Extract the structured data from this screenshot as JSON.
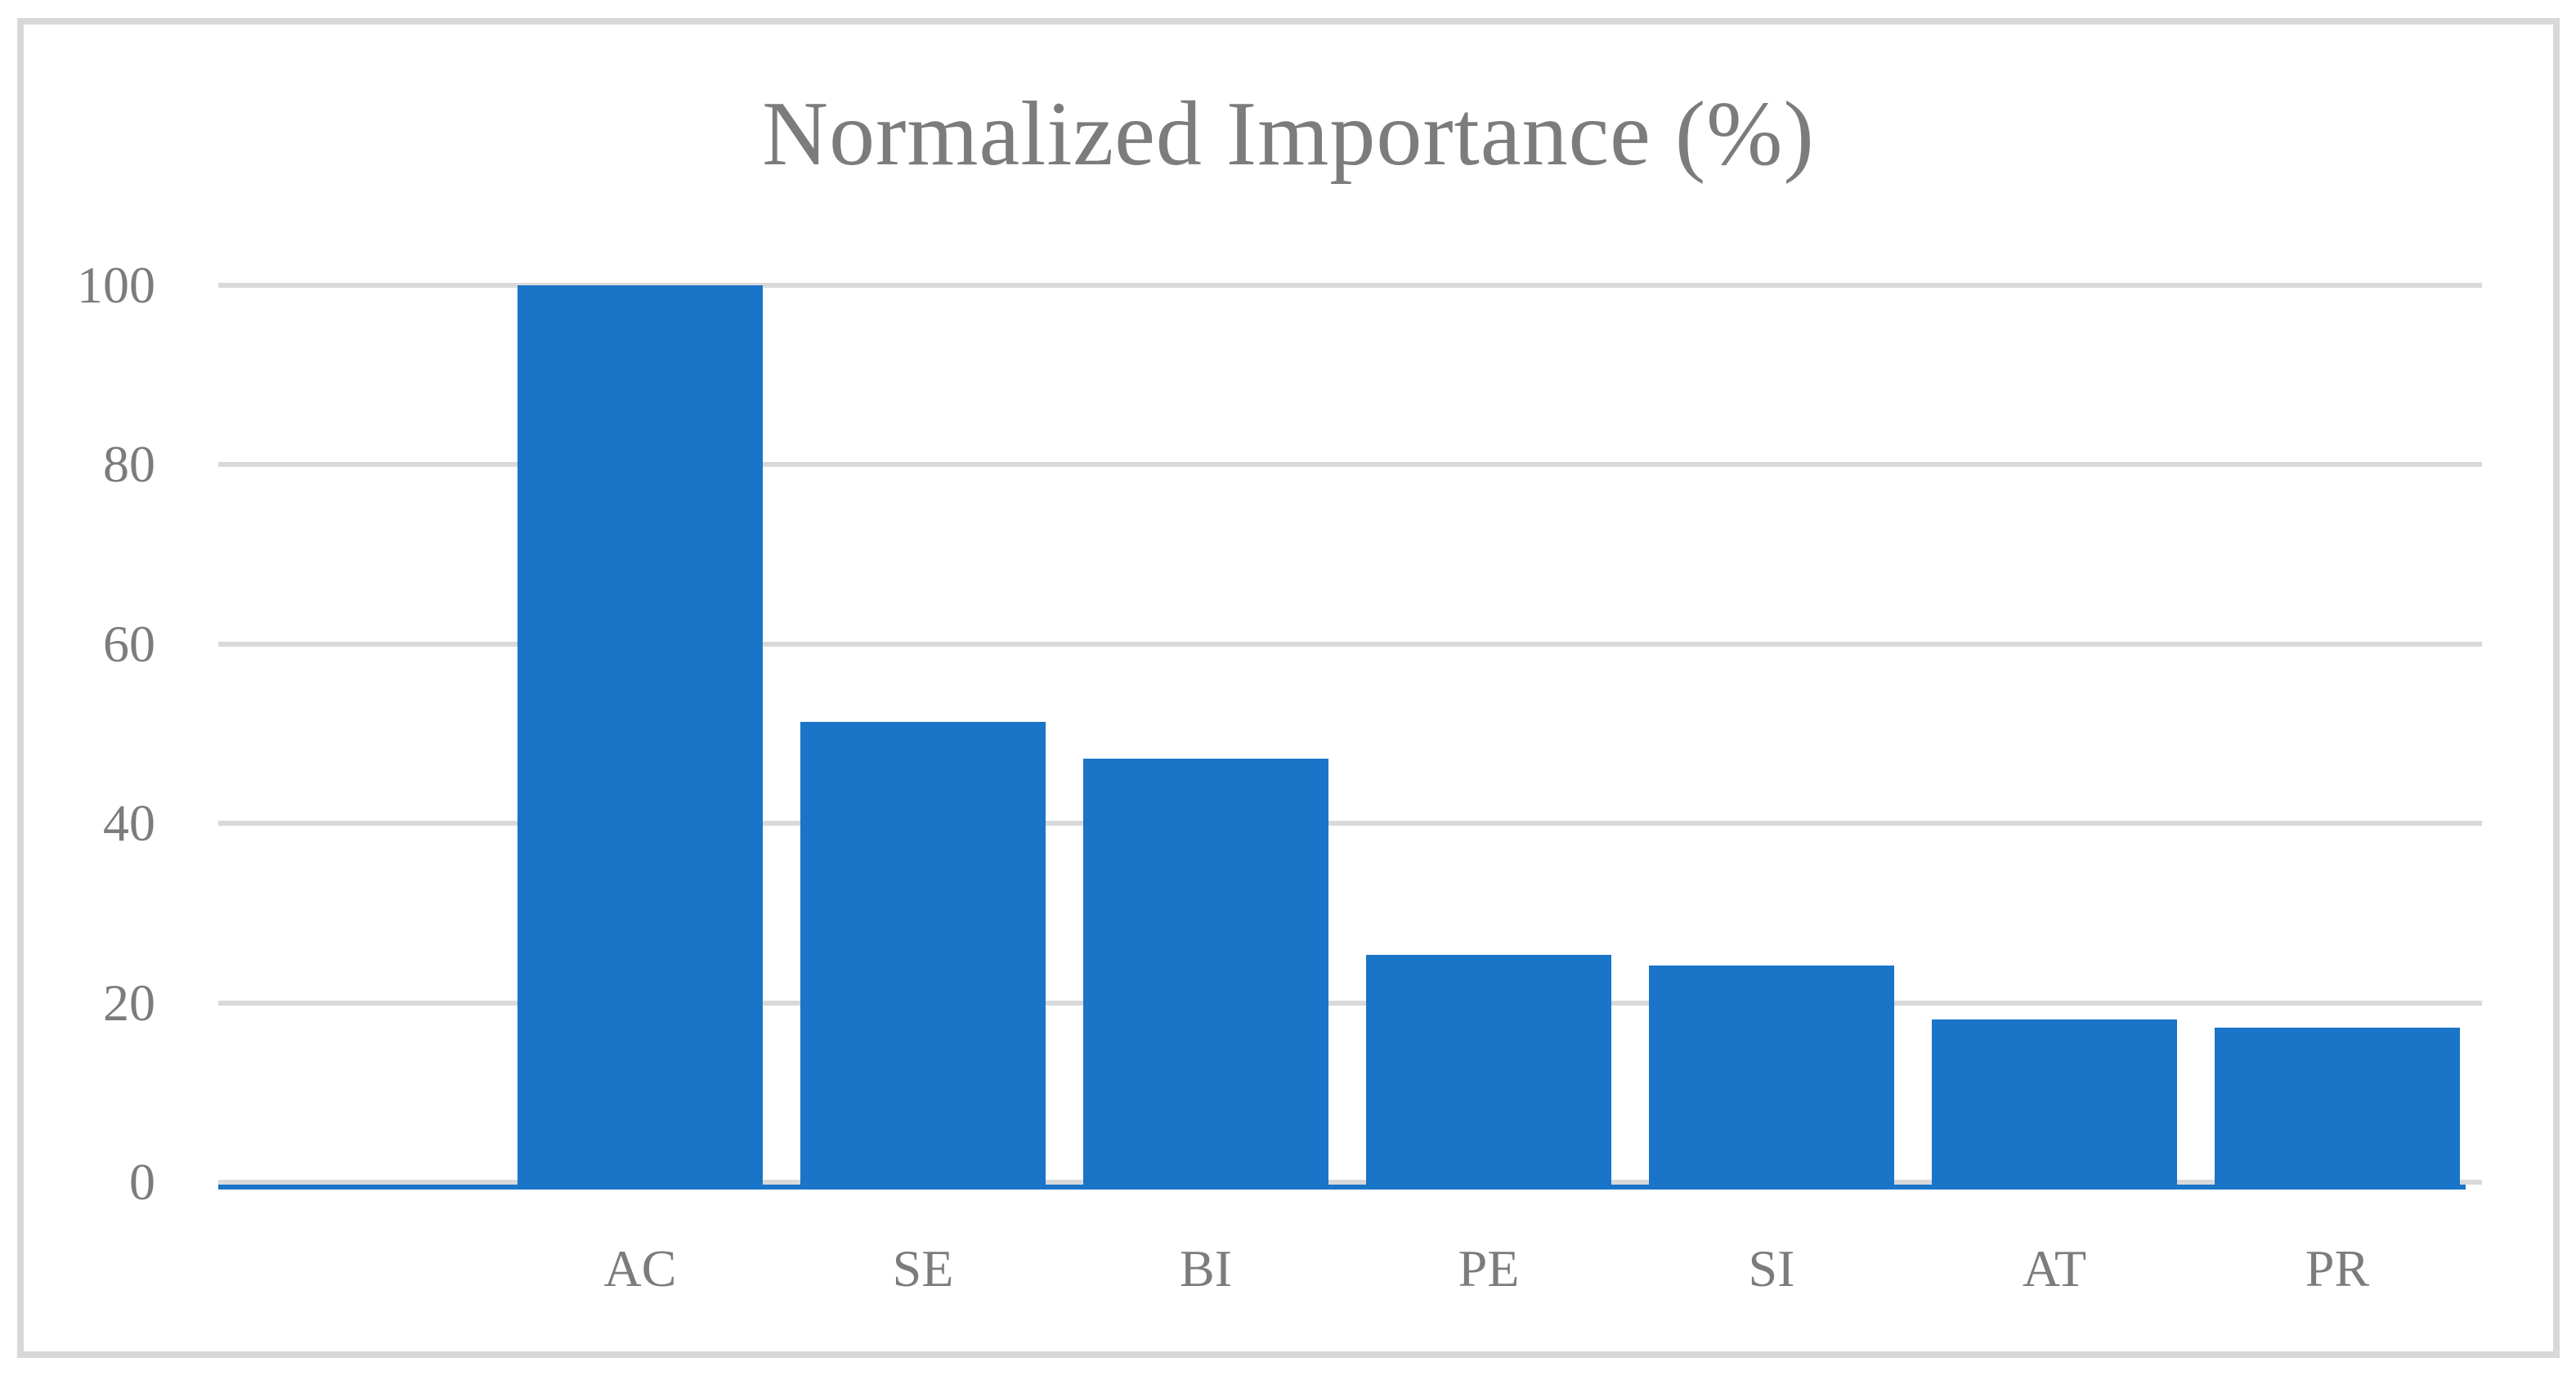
{
  "chart_data": {
    "type": "bar",
    "title": "Normalized Importance (%)",
    "categories": [
      "AC",
      "SE",
      "BI",
      "PE",
      "SI",
      "AT",
      "PR"
    ],
    "values": [
      100,
      51.3,
      47.2,
      25.3,
      24.2,
      18.1,
      17.2
    ],
    "xlabel": "",
    "ylabel": "",
    "ylim": [
      0,
      100
    ],
    "yticks": [
      0,
      20,
      40,
      60,
      80,
      100
    ],
    "grid": true,
    "legend": false,
    "colors": {
      "bar": "#1A74C8",
      "gridline": "#D9D9D9",
      "frame": "#D8D8D8",
      "text": "#7C7C7C",
      "background": "#FFFFFF"
    }
  }
}
